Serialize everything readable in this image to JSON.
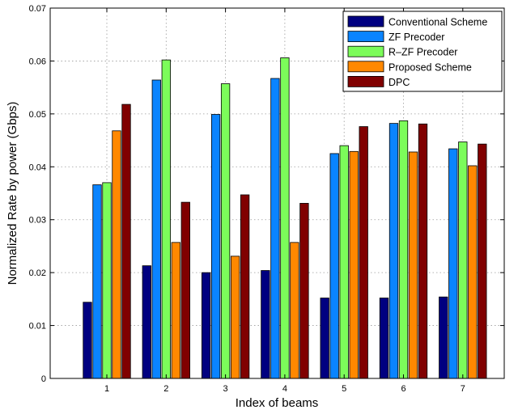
{
  "chart_data": {
    "type": "bar",
    "title": "",
    "xlabel": "Index of beams",
    "ylabel": "Normalized Rate by power (Gbps)",
    "categories": [
      "1",
      "2",
      "3",
      "4",
      "5",
      "6",
      "7"
    ],
    "ylim": [
      0,
      0.07
    ],
    "yticks": [
      "0",
      "0.01",
      "0.02",
      "0.03",
      "0.04",
      "0.05",
      "0.06",
      "0.07"
    ],
    "grid": true,
    "legend_position": "top-right",
    "series": [
      {
        "name": "Conventional Scheme",
        "color": "#000080",
        "values": [
          0.0144,
          0.0213,
          0.02,
          0.0204,
          0.0152,
          0.0152,
          0.0154
        ]
      },
      {
        "name": "ZF Precoder",
        "color": "#0a84ff",
        "values": [
          0.0366,
          0.0564,
          0.0499,
          0.0567,
          0.0425,
          0.0482,
          0.0434
        ]
      },
      {
        "name": "R–ZF Precoder",
        "color": "#7cfc5a",
        "values": [
          0.037,
          0.0602,
          0.0557,
          0.0606,
          0.044,
          0.0487,
          0.0447
        ]
      },
      {
        "name": "Proposed Scheme",
        "color": "#ff8800",
        "values": [
          0.0468,
          0.0257,
          0.0231,
          0.0257,
          0.0429,
          0.0428,
          0.0402
        ]
      },
      {
        "name": "DPC",
        "color": "#800000",
        "values": [
          0.0518,
          0.0333,
          0.0347,
          0.0331,
          0.0476,
          0.0481,
          0.0443
        ]
      }
    ]
  }
}
